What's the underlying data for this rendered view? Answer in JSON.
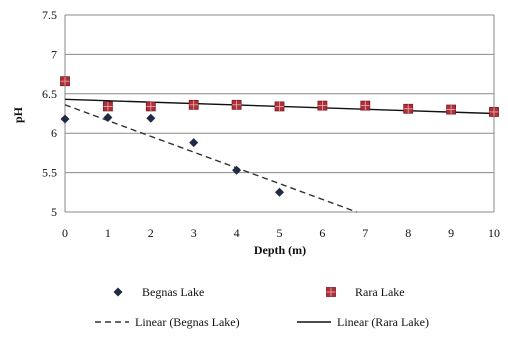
{
  "chart_data": {
    "type": "scatter",
    "title": "",
    "xlabel": "Depth  (m)",
    "ylabel": "pH",
    "xlim": [
      0,
      10
    ],
    "ylim": [
      5,
      7.5
    ],
    "x_ticks": [
      "0",
      "1",
      "2",
      "3",
      "4",
      "5",
      "6",
      "7",
      "8",
      "9",
      "10"
    ],
    "y_ticks": [
      "5",
      "5.5",
      "6",
      "6.5",
      "7",
      "7.5"
    ],
    "grid": "horizontal",
    "legend_position": "bottom",
    "series": [
      {
        "name": "Begnas Lake",
        "marker": "diamond",
        "color": "#1f2a44",
        "x": [
          0,
          1,
          2,
          3,
          4,
          5
        ],
        "y": [
          6.18,
          6.2,
          6.19,
          5.88,
          5.53,
          5.25
        ]
      },
      {
        "name": "Rara Lake",
        "marker": "square",
        "color": "#b0303a",
        "x": [
          0,
          1,
          2,
          3,
          4,
          5,
          6,
          7,
          8,
          9,
          10
        ],
        "y": [
          6.66,
          6.34,
          6.34,
          6.36,
          6.36,
          6.34,
          6.35,
          6.35,
          6.31,
          6.3,
          6.27
        ]
      }
    ],
    "trendlines": [
      {
        "name": "Linear (Begnas Lake)",
        "style": "dashed",
        "color": "#333333",
        "slope": -0.2,
        "intercept": 6.36
      },
      {
        "name": "Linear (Rara Lake)",
        "style": "solid",
        "color": "#111111",
        "slope": -0.018,
        "intercept": 6.43
      }
    ]
  }
}
